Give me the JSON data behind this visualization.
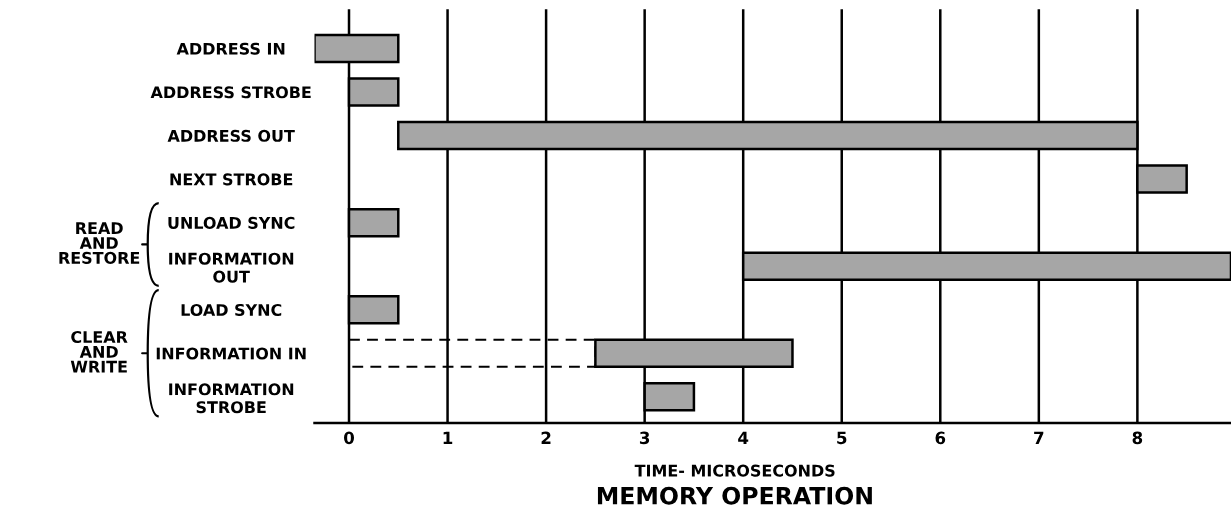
{
  "chart_data": {
    "type": "bar",
    "orientation": "horizontal",
    "title": "MEMORY OPERATION",
    "xlabel": "TIME- MICROSECONDS",
    "categories": [
      "ADDRESS IN",
      "ADDRESS STROBE",
      "ADDRESS OUT",
      "NEXT STROBE",
      "UNLOAD SYNC",
      "INFORMATION\nOUT",
      "LOAD SYNC",
      "INFORMATION IN",
      "INFORMATION\nSTROBE"
    ],
    "series": [
      {
        "color": "#a6a6a6",
        "line_style": "solid",
        "base": [
          -0.35,
          0,
          0.5,
          8,
          0,
          4,
          0,
          2.5,
          3
        ],
        "values": [
          0.85,
          0.5,
          7.5,
          0.5,
          0.5,
          4.95,
          0.5,
          2,
          0.5
        ]
      },
      {
        "color": "#000000",
        "line_style": "dashed",
        "base": [
          null,
          null,
          null,
          null,
          null,
          null,
          null,
          0,
          null
        ],
        "values": [
          null,
          null,
          null,
          null,
          null,
          null,
          null,
          2.5,
          null
        ]
      }
    ],
    "xlim": [
      -0.35,
      8.95
    ],
    "xticks": [
      0,
      1,
      2,
      3,
      4,
      5,
      6,
      7,
      8
    ],
    "grid": "x",
    "legend": false,
    "annotations": [
      "READ\nAND\nRESTORE",
      "CLEAR\nAND\nWRITE"
    ]
  }
}
